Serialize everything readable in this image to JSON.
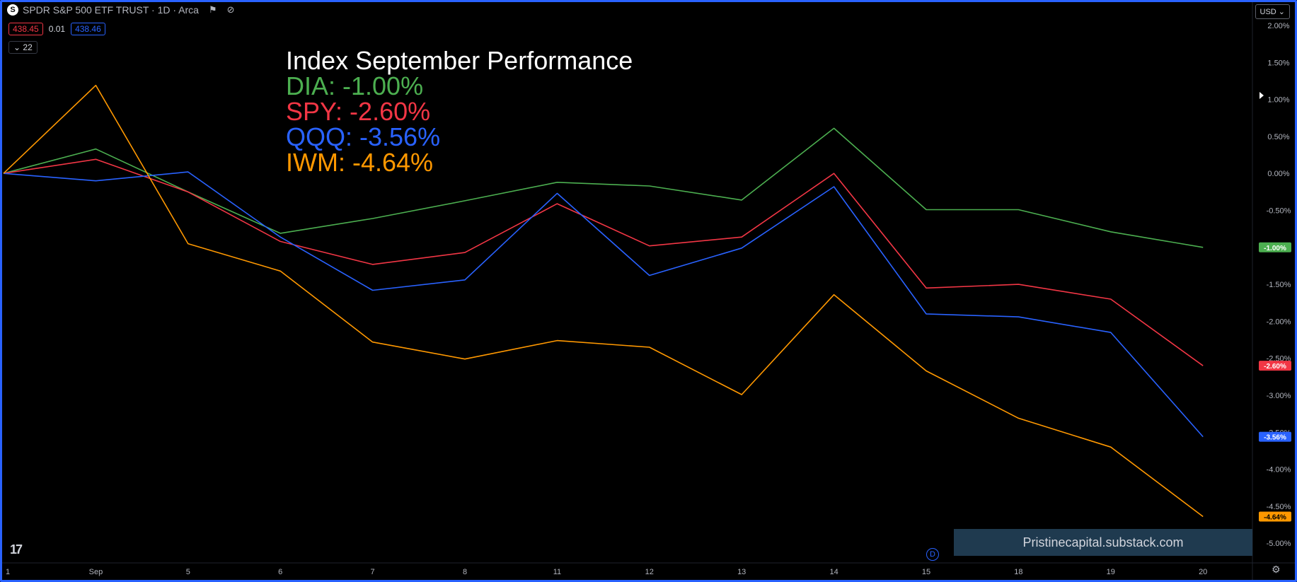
{
  "header": {
    "symbol_logo": "S",
    "title": "SPDR S&P 500 ETF TRUST · 1D · Arca",
    "icons": [
      "flag-icon",
      "eye-off-icon"
    ]
  },
  "prices": {
    "bid": "438.45",
    "spread": "0.01",
    "ask": "438.46"
  },
  "indicator_toggle": "⌄ 22",
  "currency": "USD ⌄",
  "annotation": {
    "title": "Index September Performance",
    "lines": [
      {
        "text": "DIA: -1.00%",
        "color": "#4caf50"
      },
      {
        "text": "SPY: -2.60%",
        "color": "#f23645"
      },
      {
        "text": "QQQ: -3.56%",
        "color": "#2962ff"
      },
      {
        "text": "IWM: -4.64%",
        "color": "#ff9800"
      }
    ]
  },
  "watermark": "Pristinecapital.substack.com",
  "tv_logo": "17",
  "d_badge": "D",
  "chart_data": {
    "type": "line",
    "categories": [
      "1",
      "Sep",
      "5",
      "6",
      "7",
      "8",
      "11",
      "12",
      "13",
      "14",
      "15",
      "18",
      "19",
      "20"
    ],
    "x_tick_labels": [
      "1",
      "Sep",
      "5",
      "6",
      "7",
      "8",
      "11",
      "12",
      "13",
      "14",
      "15",
      "18",
      "19",
      "20"
    ],
    "y_tick_labels": [
      "2.00%",
      "1.50%",
      "1.00%",
      "0.50%",
      "0.00%",
      "-0.50%",
      "-1.00%",
      "-1.50%",
      "-2.00%",
      "-2.50%",
      "-3.00%",
      "-3.50%",
      "-4.00%",
      "-4.50%",
      "-5.00%"
    ],
    "y_ticks": [
      2.0,
      1.5,
      1.0,
      0.5,
      0.0,
      -0.5,
      -1.0,
      -1.5,
      -2.0,
      -2.5,
      -3.0,
      -3.5,
      -4.0,
      -4.5,
      -5.0
    ],
    "ylim": [
      -5.25,
      2.0
    ],
    "series": [
      {
        "name": "DIA",
        "color": "#4caf50",
        "last_label": "-1.00%",
        "values": [
          0.0,
          0.33,
          -0.25,
          -0.81,
          -0.61,
          -0.37,
          -0.12,
          -0.17,
          -0.36,
          0.61,
          -0.49,
          -0.49,
          -0.79,
          -1.0
        ]
      },
      {
        "name": "SPY",
        "color": "#f23645",
        "last_label": "-2.60%",
        "values": [
          0.0,
          0.19,
          -0.25,
          -0.92,
          -1.23,
          -1.07,
          -0.41,
          -0.98,
          -0.86,
          0.0,
          -1.55,
          -1.5,
          -1.7,
          -2.6
        ]
      },
      {
        "name": "QQQ",
        "color": "#2962ff",
        "last_label": "-3.56%",
        "values": [
          0.0,
          -0.1,
          0.02,
          -0.86,
          -1.58,
          -1.44,
          -0.27,
          -1.38,
          -1.01,
          -0.18,
          -1.9,
          -1.94,
          -2.15,
          -3.56
        ]
      },
      {
        "name": "IWM",
        "color": "#ff9800",
        "last_label": "-4.64%",
        "values": [
          0.0,
          1.19,
          -0.95,
          -1.32,
          -2.28,
          -2.51,
          -2.26,
          -2.35,
          -2.99,
          -1.64,
          -2.67,
          -3.31,
          -3.7,
          -4.64
        ]
      }
    ],
    "grid": false
  }
}
